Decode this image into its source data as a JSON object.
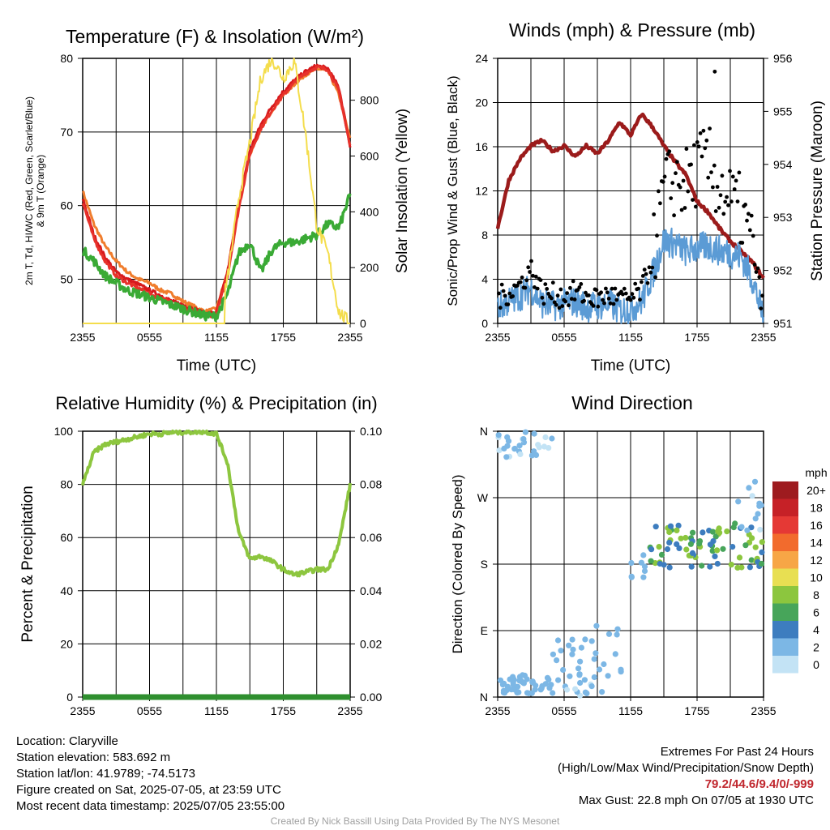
{
  "colors": {
    "temp2m": "#d7191c",
    "dewpoint": "#3aaa35",
    "heat_index": "#e7322b",
    "temp9m": "#f07d2d",
    "insolation": "#f4dd4c",
    "wind_speed": "#5b9bd5",
    "gust": "#000000",
    "pressure": "#9b1b1b",
    "rh": "#8dc63f",
    "precip": "#2f8f2f"
  },
  "chart_data": [
    {
      "id": "temp",
      "type": "line",
      "title": "Temperature (F) & Insolation (W/m²)",
      "xlabel": "Time (UTC)",
      "ylabel": "2m T, Td, HI/WC (Red, Green, Scarlet/Blue) & 9m T (Orange)",
      "ylabel2": "Solar Insolation (Yellow)",
      "xticks": [
        "2355",
        "0555",
        "1155",
        "1755",
        "2355"
      ],
      "ylim": [
        44,
        80
      ],
      "yticks": [
        50,
        60,
        70,
        80
      ],
      "y2lim": [
        0,
        950
      ],
      "y2ticks": [
        0,
        200,
        400,
        600,
        800
      ],
      "x": [
        0,
        1,
        2,
        3,
        4,
        5,
        6,
        7,
        8,
        9,
        10,
        11,
        12,
        13,
        14,
        15,
        16,
        17,
        18,
        19,
        20,
        21,
        22,
        23,
        24
      ],
      "series": [
        {
          "key": "temp9m",
          "color": "#f07d2d",
          "axis": "left",
          "values": [
            62,
            57.5,
            54.5,
            52.5,
            51,
            50,
            49.5,
            48.5,
            48,
            47,
            46.3,
            45.6,
            46,
            51,
            60,
            67,
            70.5,
            73,
            75,
            76.5,
            77.8,
            78.6,
            78.3,
            75,
            69
          ]
        },
        {
          "key": "temp2m",
          "color": "#d7191c",
          "axis": "left",
          "values": [
            61,
            56,
            53,
            51,
            50,
            49.3,
            48.5,
            47.8,
            47,
            46.5,
            46,
            45.3,
            45.5,
            51,
            60,
            67.5,
            71,
            73.5,
            75.5,
            77,
            78.2,
            79,
            78.6,
            76,
            68
          ]
        },
        {
          "key": "heat_index",
          "color": "#e7322b",
          "axis": "left",
          "values": [
            60.5,
            55.5,
            52.5,
            50.5,
            49.5,
            48.8,
            48,
            47.4,
            46.8,
            46,
            45.6,
            45,
            45.2,
            50.5,
            59.5,
            67,
            70.5,
            73,
            75,
            76.7,
            78,
            78.8,
            78.5,
            75.5,
            68
          ]
        },
        {
          "key": "dewpoint",
          "color": "#3aaa35",
          "axis": "left",
          "values": [
            54,
            52.5,
            50.5,
            49.5,
            48.5,
            48,
            47.5,
            47,
            46.5,
            46,
            45.5,
            45,
            45,
            48,
            53.5,
            55,
            51,
            54,
            55,
            55,
            55.5,
            56,
            57.5,
            57,
            61.5
          ]
        },
        {
          "key": "insolation",
          "color": "#f4dd4c",
          "axis": "right",
          "values": [
            0,
            0,
            0,
            0,
            0,
            0,
            0,
            0,
            0,
            0,
            0,
            0,
            0,
            160,
            450,
            650,
            880,
            950,
            880,
            940,
            680,
            350,
            250,
            40,
            0
          ]
        }
      ]
    },
    {
      "id": "wind",
      "type": "line",
      "title": "Winds (mph) & Pressure (mb)",
      "xlabel": "Time (UTC)",
      "ylabel": "Sonic/Prop Wind & Gust (Blue, Black)",
      "ylabel2": "Station Pressure (Maroon)",
      "xticks": [
        "2355",
        "0555",
        "1155",
        "1755",
        "2355"
      ],
      "ylim": [
        0,
        24
      ],
      "yticks": [
        0,
        4,
        8,
        12,
        16,
        20,
        24
      ],
      "y2lim": [
        951,
        956
      ],
      "y2ticks": [
        951,
        952,
        953,
        954,
        955,
        956
      ],
      "x": [
        0,
        1,
        2,
        3,
        4,
        5,
        6,
        7,
        8,
        9,
        10,
        11,
        12,
        13,
        14,
        15,
        16,
        17,
        18,
        19,
        20,
        21,
        22,
        23,
        24
      ],
      "series": [
        {
          "key": "pressure",
          "color": "#9b1b1b",
          "axis": "right",
          "values": [
            952.8,
            953.7,
            954.1,
            954.35,
            954.45,
            954.25,
            954.35,
            954.15,
            954.35,
            954.2,
            954.45,
            954.8,
            954.55,
            954.95,
            954.7,
            954.35,
            954.05,
            953.8,
            953.3,
            953.1,
            952.8,
            952.55,
            952.35,
            952.15,
            951.85
          ]
        },
        {
          "key": "wind_speed",
          "color": "#5b9bd5",
          "axis": "left",
          "values": [
            1.5,
            2.0,
            2.5,
            3.2,
            1.8,
            1.6,
            1.8,
            2.0,
            1.5,
            1.6,
            1.8,
            1.2,
            1.3,
            2.0,
            4.5,
            7.5,
            7.2,
            6.5,
            6.8,
            7.0,
            6.6,
            6.4,
            6.0,
            4.0,
            0.5
          ]
        },
        {
          "key": "gust",
          "color": "#000000",
          "axis": "left",
          "mode": "points",
          "values": [
            2.2,
            2.8,
            3.5,
            5.0,
            2.8,
            2.6,
            2.4,
            2.8,
            2.5,
            2.2,
            2.6,
            2.2,
            2.2,
            3.0,
            6.0,
            12.0,
            13.0,
            12.5,
            14.0,
            14.5,
            12.5,
            11.0,
            10.0,
            7.0,
            1.0
          ],
          "max": {
            "x": 19.6,
            "y": 22.8
          }
        }
      ]
    },
    {
      "id": "rh",
      "type": "line",
      "title": "Relative Humidity (%) & Precipitation (in)",
      "ylabel": "Percent & Precipitation",
      "xticks": [
        "2355",
        "0555",
        "1155",
        "1755",
        "2355"
      ],
      "ylim": [
        0,
        100
      ],
      "yticks": [
        0,
        20,
        40,
        60,
        80,
        100
      ],
      "y2lim": [
        0,
        0.1
      ],
      "y2ticks": [
        "0.00",
        "0.02",
        "0.04",
        "0.06",
        "0.08",
        "0.10"
      ],
      "x": [
        0,
        1,
        2,
        3,
        4,
        5,
        6,
        7,
        8,
        9,
        10,
        11,
        12,
        13,
        14,
        15,
        16,
        17,
        18,
        19,
        20,
        21,
        22,
        23,
        24
      ],
      "series": [
        {
          "key": "rh",
          "color": "#8dc63f",
          "axis": "left",
          "values": [
            80,
            92,
            95,
            96,
            97,
            98,
            99,
            99,
            99.5,
            99.6,
            99.8,
            99.8,
            99,
            88,
            62,
            52,
            53,
            51,
            48,
            46,
            47,
            48,
            48,
            58,
            80
          ]
        },
        {
          "key": "precip",
          "color": "#2f8f2f",
          "axis": "right",
          "values": [
            0,
            0,
            0,
            0,
            0,
            0,
            0,
            0,
            0,
            0,
            0,
            0,
            0,
            0,
            0,
            0,
            0,
            0,
            0,
            0,
            0,
            0,
            0,
            0,
            0
          ]
        }
      ]
    },
    {
      "id": "direction",
      "type": "scatter",
      "title": "Wind Direction",
      "ylabel": "Direction (Colored By Speed)",
      "xticks": [
        "2355",
        "0555",
        "1155",
        "1755",
        "2355"
      ],
      "ylim": [
        0,
        360
      ],
      "yticks": [
        {
          "v": 0,
          "label": "N"
        },
        {
          "v": 90,
          "label": "E"
        },
        {
          "v": 180,
          "label": "S"
        },
        {
          "v": 270,
          "label": "W"
        },
        {
          "v": 360,
          "label": "N"
        }
      ],
      "legend": {
        "title": "mph",
        "labels": [
          "20+",
          "18",
          "16",
          "14",
          "12",
          "10",
          "8",
          "6",
          "4",
          "2",
          "0"
        ],
        "colors": [
          "#9e1b1f",
          "#c62127",
          "#e53935",
          "#f26b2d",
          "#f7a646",
          "#e8df52",
          "#8cc63e",
          "#47a55a",
          "#3d7dbf",
          "#7cb7e5",
          "#c3e3f5"
        ]
      },
      "groups": [
        {
          "x": [
            0,
            5
          ],
          "y": [
            5,
            30
          ],
          "speed": [
            1,
            3
          ],
          "n": 45
        },
        {
          "x": [
            4.5,
            8
          ],
          "y": [
            20,
            80
          ],
          "speed": [
            1,
            3
          ],
          "n": 18
        },
        {
          "x": [
            0,
            5
          ],
          "y": [
            325,
            360
          ],
          "speed": [
            0,
            3
          ],
          "n": 28
        },
        {
          "x": [
            6,
            9.5
          ],
          "y": [
            0,
            25
          ],
          "speed": [
            0,
            2
          ],
          "n": 12
        },
        {
          "x": [
            8.5,
            11.5
          ],
          "y": [
            10,
            110
          ],
          "speed": [
            1,
            3
          ],
          "n": 14
        },
        {
          "x": [
            12,
            13.5
          ],
          "y": [
            160,
            195
          ],
          "speed": [
            1,
            3
          ],
          "n": 8
        },
        {
          "x": [
            13.5,
            24
          ],
          "y": [
            175,
            235
          ],
          "speed": [
            3,
            9
          ],
          "n": 80
        },
        {
          "x": [
            21.5,
            24
          ],
          "y": [
            225,
            295
          ],
          "speed": [
            0,
            3
          ],
          "n": 12
        }
      ]
    }
  ],
  "footer": {
    "location": "Location: Claryville",
    "elevation": "Station elevation: 583.692 m",
    "latlon": "Station lat/lon: 41.9789; -74.5173",
    "created": "Figure created on Sat, 2025-07-05, at 23:59 UTC",
    "recent": "Most recent data timestamp: 2025/07/05 23:55:00",
    "extremes_title": "Extremes For Past 24 Hours",
    "extremes_sub": "(High/Low/Max Wind/Precipitation/Snow Depth)",
    "extremes_values": "79.2/44.6/9.4/0/-999",
    "max_gust": "Max Gust: 22.8 mph On 07/05 at 1930 UTC",
    "credit": "Created By Nick Bassill Using Data Provided By The NYS Mesonet"
  }
}
